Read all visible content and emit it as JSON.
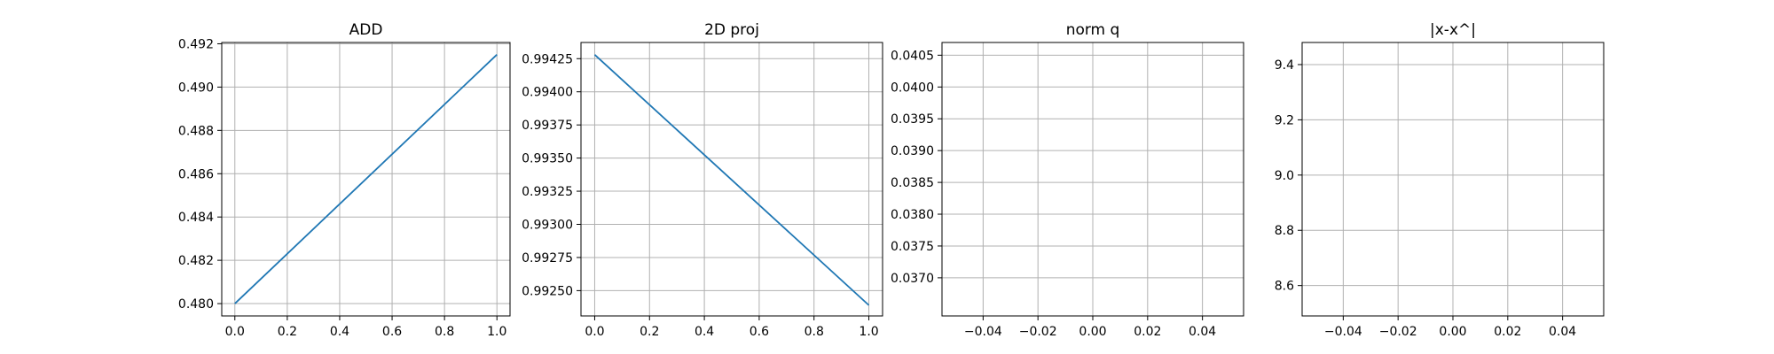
{
  "figure": {
    "colors": {
      "line": "#1f77b4",
      "grid": "#b0b0b0",
      "axes": "#000000",
      "background": "#ffffff"
    }
  },
  "chart_data": [
    {
      "type": "line",
      "title": "ADD",
      "grid": true,
      "xlim": [
        -0.05,
        1.05
      ],
      "ylim": [
        0.47943,
        0.49206
      ],
      "xticks": [
        0.0,
        0.2,
        0.4,
        0.6,
        0.8,
        1.0
      ],
      "xtick_labels": [
        "0.0",
        "0.2",
        "0.4",
        "0.6",
        "0.8",
        "1.0"
      ],
      "yticks": [
        0.48,
        0.482,
        0.484,
        0.486,
        0.488,
        0.49,
        0.492
      ],
      "ytick_labels": [
        "0.480",
        "0.482",
        "0.484",
        "0.486",
        "0.488",
        "0.490",
        "0.492"
      ],
      "series": [
        {
          "x": [
            0,
            1
          ],
          "y": [
            0.48,
            0.4915
          ]
        }
      ]
    },
    {
      "type": "line",
      "title": "2D proj",
      "grid": true,
      "xlim": [
        -0.05,
        1.05
      ],
      "ylim": [
        0.992309,
        0.994372
      ],
      "xticks": [
        0.0,
        0.2,
        0.4,
        0.6,
        0.8,
        1.0
      ],
      "xtick_labels": [
        "0.0",
        "0.2",
        "0.4",
        "0.6",
        "0.8",
        "1.0"
      ],
      "yticks": [
        0.9925,
        0.99275,
        0.993,
        0.99325,
        0.9935,
        0.99375,
        0.994,
        0.99425
      ],
      "ytick_labels": [
        "0.99250",
        "0.99275",
        "0.99300",
        "0.99325",
        "0.99350",
        "0.99375",
        "0.99400",
        "0.99425"
      ],
      "series": [
        {
          "x": [
            0,
            1
          ],
          "y": [
            0.99428,
            0.99239
          ]
        }
      ]
    },
    {
      "type": "line",
      "title": "norm q",
      "grid": true,
      "xlim": [
        -0.055,
        0.055
      ],
      "ylim": [
        0.0364,
        0.0407
      ],
      "xticks": [
        -0.04,
        -0.02,
        0.0,
        0.02,
        0.04
      ],
      "xtick_labels": [
        "−0.04",
        "−0.02",
        "0.00",
        "0.02",
        "0.04"
      ],
      "yticks": [
        0.037,
        0.0375,
        0.038,
        0.0385,
        0.039,
        0.0395,
        0.04,
        0.0405
      ],
      "ytick_labels": [
        "0.0370",
        "0.0375",
        "0.0380",
        "0.0385",
        "0.0390",
        "0.0395",
        "0.0400",
        "0.0405"
      ],
      "series": []
    },
    {
      "type": "line",
      "title": "|x-x^|",
      "grid": true,
      "xlim": [
        -0.055,
        0.055
      ],
      "ylim": [
        8.49,
        9.48
      ],
      "xticks": [
        -0.04,
        -0.02,
        0.0,
        0.02,
        0.04
      ],
      "xtick_labels": [
        "−0.04",
        "−0.02",
        "0.00",
        "0.02",
        "0.04"
      ],
      "yticks": [
        8.6,
        8.8,
        9.0,
        9.2,
        9.4
      ],
      "ytick_labels": [
        "8.6",
        "8.8",
        "9.0",
        "9.2",
        "9.4"
      ],
      "series": []
    }
  ]
}
